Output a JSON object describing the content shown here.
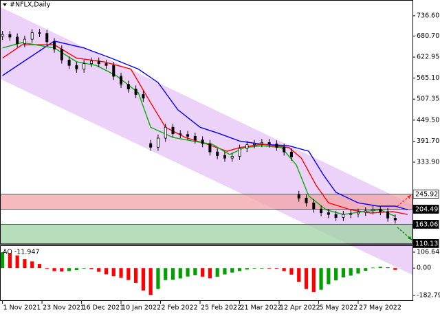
{
  "chart_data": {
    "type": "candlestick",
    "title": "#NFLX,Daily",
    "xlim": [
      -1,
      166
    ],
    "ylim": [
      109,
      780
    ],
    "x": [
      0,
      3,
      6,
      9,
      12,
      15,
      18,
      21,
      24,
      27,
      30,
      33,
      36,
      39,
      42,
      45,
      48,
      51,
      54,
      57,
      60,
      63,
      66,
      69,
      72,
      75,
      78,
      81,
      84,
      87,
      90,
      93,
      96,
      99,
      102,
      105,
      108,
      111,
      114,
      117,
      120,
      123,
      126,
      129,
      132,
      135,
      138,
      141,
      144,
      147,
      150,
      153,
      156,
      159
    ],
    "open": [
      680,
      685,
      678,
      660,
      672,
      690,
      688,
      665,
      645,
      615,
      600,
      590,
      605,
      612,
      605,
      600,
      570,
      548,
      535,
      520,
      385,
      375,
      400,
      430,
      412,
      410,
      405,
      395,
      385,
      362,
      352,
      345,
      350,
      372,
      382,
      385,
      388,
      384,
      375,
      362,
      245,
      235,
      222,
      205,
      195,
      190,
      182,
      190,
      192,
      196,
      200,
      204,
      198,
      180
    ],
    "high": [
      695,
      695,
      688,
      682,
      700,
      700,
      698,
      675,
      655,
      625,
      610,
      615,
      622,
      622,
      615,
      610,
      580,
      558,
      545,
      530,
      395,
      410,
      440,
      440,
      422,
      420,
      415,
      405,
      395,
      372,
      362,
      360,
      382,
      392,
      395,
      398,
      398,
      394,
      385,
      372,
      255,
      245,
      232,
      215,
      205,
      200,
      200,
      202,
      206,
      210,
      214,
      214,
      208,
      190
    ],
    "low": [
      670,
      668,
      650,
      650,
      662,
      678,
      655,
      635,
      605,
      590,
      580,
      580,
      595,
      595,
      590,
      560,
      538,
      525,
      510,
      500,
      365,
      365,
      390,
      402,
      400,
      395,
      385,
      375,
      352,
      342,
      335,
      335,
      340,
      362,
      372,
      375,
      374,
      365,
      352,
      338,
      225,
      212,
      195,
      185,
      180,
      172,
      172,
      180,
      182,
      186,
      190,
      188,
      170,
      165
    ],
    "close": [
      685,
      678,
      660,
      672,
      690,
      688,
      665,
      645,
      615,
      600,
      590,
      605,
      612,
      605,
      600,
      570,
      548,
      535,
      520,
      510,
      375,
      400,
      430,
      412,
      410,
      405,
      395,
      385,
      362,
      352,
      345,
      350,
      372,
      382,
      385,
      388,
      384,
      375,
      362,
      348,
      235,
      222,
      205,
      195,
      190,
      182,
      190,
      192,
      196,
      200,
      204,
      198,
      180,
      175
    ],
    "up_color": "#ffffff",
    "down_color": "#000000",
    "xticks": [
      {
        "value": 0,
        "label": "1 Nov 2021"
      },
      {
        "value": 16,
        "label": "23 Nov 2021"
      },
      {
        "value": 32,
        "label": "16 Dec 2021"
      },
      {
        "value": 48,
        "label": "10 Jan 2022"
      },
      {
        "value": 64,
        "label": "2 Feb 2022"
      },
      {
        "value": 80,
        "label": "25 Feb 2022"
      },
      {
        "value": 96,
        "label": "21 Mar 2022"
      },
      {
        "value": 112,
        "label": "12 Apr 2022"
      },
      {
        "value": 128,
        "label": "5 May 2022"
      },
      {
        "value": 144,
        "label": "27 May 2022"
      }
    ],
    "yticks": [
      {
        "value": 736.6,
        "label": "736.60"
      },
      {
        "value": 680.7,
        "label": "680.70"
      },
      622.95,
      {
        "value": 565.1,
        "label": "565.10"
      },
      507.35,
      {
        "value": 449.5,
        "label": "449.50"
      },
      {
        "value": 391.7,
        "label": "391.70"
      },
      {
        "value": 333.9,
        "label": "333.90"
      }
    ],
    "channel": {
      "color": "#e9c9f7",
      "upper": [
        761,
        217
      ],
      "lower": [
        563,
        24
      ]
    },
    "zones": [
      {
        "top": 245.92,
        "bottom": 204.49,
        "color": "#f3a3a8"
      },
      {
        "top": 163.06,
        "bottom": 110.13,
        "color": "#9fd3a3"
      }
    ],
    "ma_series": [
      {
        "color": "#0000ff",
        "x": [
          0,
          21,
          33,
          44,
          55,
          63,
          71,
          80,
          88,
          96,
          105,
          116,
          124,
          130,
          135,
          144,
          152,
          159,
          164
        ],
        "values": [
          572,
          667,
          648,
          620,
          590,
          553,
          478,
          430,
          412,
          392,
          383,
          379,
          364,
          298,
          251,
          222,
          213,
          213,
          203
        ]
      },
      {
        "color": "#ff0000",
        "x": [
          0,
          8,
          21,
          30,
          41,
          52,
          60,
          66,
          74,
          83,
          91,
          96,
          105,
          116,
          121,
          127,
          132,
          141,
          149,
          158,
          164
        ],
        "values": [
          620,
          657,
          657,
          620,
          610,
          590,
          497,
          430,
          402,
          383,
          364,
          374,
          383,
          374,
          345,
          270,
          222,
          203,
          194,
          198,
          190
        ]
      },
      {
        "color": "#00b000",
        "x": [
          0,
          8,
          21,
          30,
          38,
          46,
          55,
          60,
          69,
          77,
          85,
          92,
          98,
          105,
          113,
          119,
          124,
          131,
          138,
          146,
          153,
          159
        ],
        "values": [
          648,
          663,
          648,
          610,
          600,
          572,
          525,
          430,
          402,
          392,
          383,
          355,
          374,
          379,
          374,
          326,
          241,
          203,
          190,
          198,
          203,
          185
        ]
      }
    ],
    "oscillator": {
      "label": "AO -11.947",
      "ylim": [
        -220,
        148
      ],
      "yticks": [
        106.64,
        {
          "value": 0,
          "label": "0.00"
        },
        -182.791
      ],
      "up_color": "#00a000",
      "down_color": "#ff0000",
      "values": [
        106,
        100,
        85,
        60,
        45,
        28,
        -5,
        -20,
        -23,
        -20,
        -13,
        0,
        -8,
        -25,
        -42,
        -55,
        -65,
        -80,
        -100,
        -150,
        -180,
        -140,
        -80,
        -78,
        -70,
        -57,
        -47,
        -58,
        -68,
        -58,
        -43,
        -30,
        -20,
        -10,
        -3,
        1,
        0,
        -4,
        -20,
        -44,
        -92,
        -140,
        -160,
        -145,
        -108,
        -82,
        -62,
        -50,
        -36,
        -18,
        3,
        9,
        5,
        -11.947
      ]
    }
  }
}
